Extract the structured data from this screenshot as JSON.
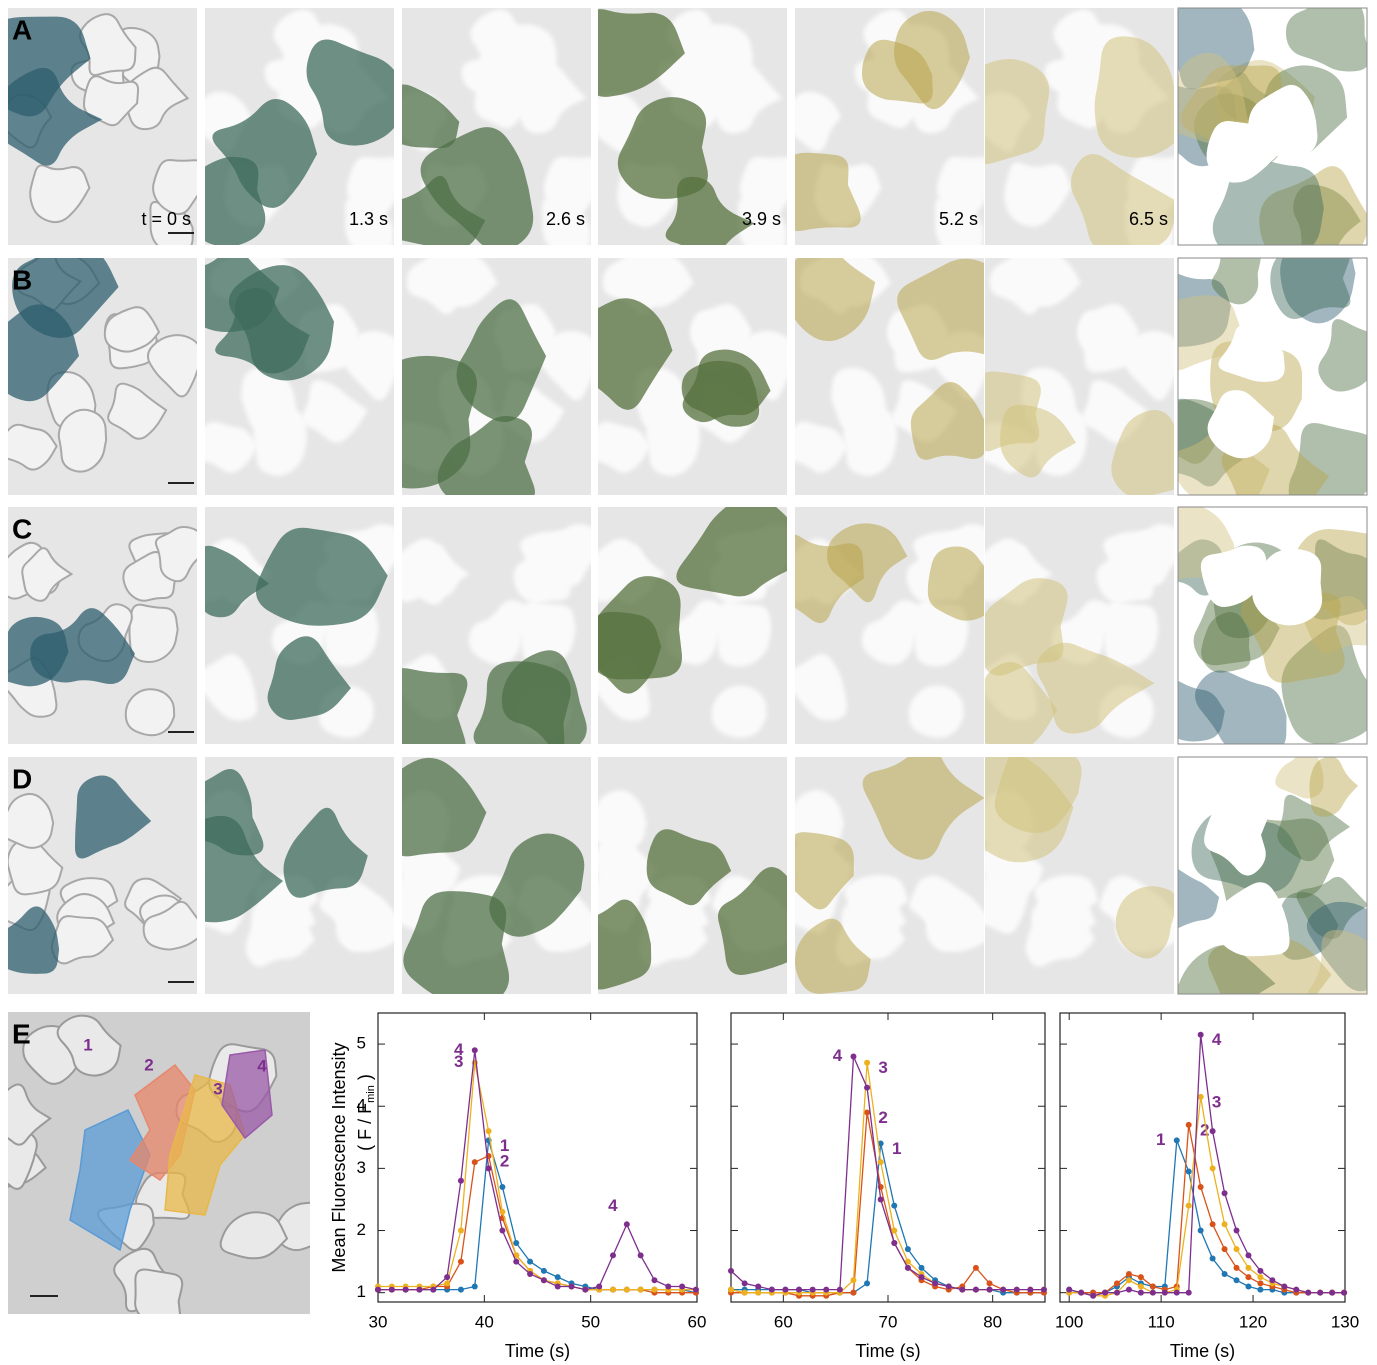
{
  "panels": [
    {
      "label": "A",
      "times": [
        "t = 0 s",
        "1.3 s",
        "2.6 s",
        "3.9 s",
        "5.2 s",
        "6.5 s"
      ]
    },
    {
      "label": "B"
    },
    {
      "label": "C"
    },
    {
      "label": "D"
    }
  ],
  "panel_e": {
    "label": "E",
    "regions": [
      "1",
      "2",
      "3",
      "4"
    ]
  },
  "chart_data": [
    {
      "type": "line",
      "xlabel": "Time (s)",
      "ylabel": "Mean Fluorescence Intensity",
      "ylabel_unit": [
        "( F / F",
        "min",
        " )"
      ],
      "xlim": [
        30,
        60
      ],
      "ylim": [
        0.85,
        5.5
      ],
      "xticks": [
        30,
        40,
        50,
        60
      ],
      "yticks": [
        1,
        2,
        3,
        4,
        5
      ],
      "ytick_labels": true,
      "x": [
        30.0,
        31.3,
        32.6,
        33.9,
        35.2,
        36.5,
        37.8,
        39.1,
        40.4,
        41.7,
        43.0,
        44.3,
        45.6,
        46.9,
        48.2,
        49.5,
        50.8,
        52.1,
        53.4,
        54.7,
        56.0,
        57.3,
        58.6,
        59.9
      ],
      "series": [
        {
          "name": "1",
          "color": "#1f77b4",
          "values": [
            1.05,
            1.05,
            1.05,
            1.05,
            1.05,
            1.05,
            1.05,
            1.1,
            3.45,
            2.7,
            1.8,
            1.5,
            1.35,
            1.25,
            1.15,
            1.1,
            1.05,
            1.05,
            1.05,
            1.05,
            1.05,
            1.05,
            1.05,
            1.0
          ]
        },
        {
          "name": "2",
          "color": "#d95319",
          "values": [
            1.05,
            1.05,
            1.05,
            1.05,
            1.1,
            1.1,
            1.5,
            3.1,
            3.2,
            2.2,
            1.6,
            1.35,
            1.2,
            1.15,
            1.1,
            1.05,
            1.05,
            1.05,
            1.05,
            1.05,
            1.0,
            1.0,
            1.0,
            1.0
          ]
        },
        {
          "name": "3",
          "color": "#edb120",
          "values": [
            1.1,
            1.1,
            1.1,
            1.1,
            1.1,
            1.15,
            2.0,
            4.7,
            3.6,
            2.3,
            1.6,
            1.35,
            1.2,
            1.15,
            1.1,
            1.05,
            1.05,
            1.05,
            1.05,
            1.05,
            1.05,
            1.05,
            1.05,
            1.05
          ]
        },
        {
          "name": "4",
          "color": "#7e2f8e",
          "values": [
            1.05,
            1.05,
            1.05,
            1.05,
            1.05,
            1.25,
            2.8,
            4.9,
            3.0,
            2.0,
            1.5,
            1.3,
            1.2,
            1.1,
            1.1,
            1.05,
            1.1,
            1.6,
            2.1,
            1.6,
            1.2,
            1.1,
            1.1,
            1.05
          ]
        }
      ]
    },
    {
      "type": "line",
      "xlabel": "Time (s)",
      "xlim": [
        55,
        85
      ],
      "ylim": [
        0.85,
        5.5
      ],
      "xticks": [
        60,
        70,
        80
      ],
      "yticks": [
        1,
        2,
        3,
        4,
        5
      ],
      "ytick_labels": false,
      "x": [
        55.0,
        56.3,
        57.6,
        58.9,
        60.2,
        61.5,
        62.8,
        64.1,
        65.4,
        66.7,
        68.0,
        69.3,
        70.6,
        71.9,
        73.2,
        74.5,
        75.8,
        77.1,
        78.4,
        79.7,
        81.0,
        82.3,
        83.6,
        84.9
      ],
      "series": [
        {
          "name": "1",
          "color": "#1f77b4",
          "values": [
            1.05,
            1.05,
            1.05,
            1.05,
            1.05,
            1.05,
            1.0,
            1.0,
            1.0,
            1.0,
            1.15,
            3.4,
            2.4,
            1.7,
            1.4,
            1.2,
            1.1,
            1.05,
            1.05,
            1.05,
            1.0,
            1.0,
            1.0,
            1.0
          ]
        },
        {
          "name": "2",
          "color": "#d95319",
          "values": [
            1.0,
            1.0,
            1.0,
            1.0,
            1.0,
            0.95,
            0.95,
            0.95,
            1.0,
            1.0,
            3.9,
            2.7,
            1.8,
            1.4,
            1.2,
            1.1,
            1.05,
            1.1,
            1.4,
            1.15,
            1.05,
            1.0,
            1.0,
            1.0
          ]
        },
        {
          "name": "3",
          "color": "#edb120",
          "values": [
            1.05,
            1.0,
            1.0,
            1.0,
            1.0,
            1.0,
            1.0,
            1.0,
            1.0,
            1.2,
            4.7,
            3.1,
            2.0,
            1.5,
            1.3,
            1.15,
            1.1,
            1.05,
            1.05,
            1.05,
            1.05,
            1.05,
            1.05,
            1.05
          ]
        },
        {
          "name": "4",
          "color": "#7e2f8e",
          "values": [
            1.35,
            1.15,
            1.1,
            1.05,
            1.05,
            1.05,
            1.05,
            1.05,
            1.05,
            4.8,
            4.3,
            2.5,
            1.8,
            1.4,
            1.25,
            1.15,
            1.1,
            1.05,
            1.05,
            1.05,
            1.05,
            1.05,
            1.05,
            1.05
          ]
        }
      ]
    },
    {
      "type": "line",
      "xlabel": "Time (s)",
      "xlim": [
        99,
        130
      ],
      "ylim": [
        0.85,
        5.5
      ],
      "xticks": [
        100,
        110,
        120,
        130
      ],
      "yticks": [
        1,
        2,
        3,
        4,
        5
      ],
      "ytick_labels": false,
      "x": [
        100.0,
        101.3,
        102.6,
        103.9,
        105.2,
        106.5,
        107.8,
        109.1,
        110.4,
        111.7,
        113.0,
        114.3,
        115.6,
        116.9,
        118.2,
        119.5,
        120.8,
        122.1,
        123.4,
        124.7,
        126.0,
        127.3,
        128.6,
        129.9
      ],
      "series": [
        {
          "name": "1",
          "color": "#1f77b4",
          "values": [
            1.05,
            1.0,
            1.0,
            1.0,
            1.1,
            1.25,
            1.15,
            1.1,
            1.1,
            3.45,
            2.95,
            2.0,
            1.55,
            1.3,
            1.2,
            1.1,
            1.05,
            1.05,
            1.0,
            1.0,
            1.0,
            1.0,
            1.0,
            1.0
          ]
        },
        {
          "name": "2",
          "color": "#d95319",
          "values": [
            1.0,
            1.0,
            1.0,
            1.0,
            1.15,
            1.3,
            1.25,
            1.1,
            1.05,
            1.1,
            3.7,
            2.7,
            2.1,
            1.7,
            1.4,
            1.25,
            1.15,
            1.1,
            1.05,
            1.0,
            1.0,
            1.0,
            1.0,
            1.0
          ]
        },
        {
          "name": "3",
          "color": "#edb120",
          "values": [
            1.0,
            1.0,
            0.95,
            0.95,
            1.0,
            1.2,
            1.1,
            1.0,
            1.0,
            1.05,
            2.4,
            4.15,
            3.0,
            2.1,
            1.7,
            1.4,
            1.25,
            1.15,
            1.1,
            1.05,
            1.0,
            1.0,
            1.0,
            1.0
          ]
        },
        {
          "name": "4",
          "color": "#7e2f8e",
          "values": [
            1.05,
            1.0,
            0.95,
            1.0,
            1.0,
            1.05,
            1.0,
            1.0,
            1.0,
            1.0,
            1.0,
            5.15,
            3.6,
            2.6,
            2.0,
            1.6,
            1.35,
            1.2,
            1.1,
            1.05,
            1.0,
            1.0,
            1.0,
            1.0
          ]
        }
      ]
    }
  ]
}
